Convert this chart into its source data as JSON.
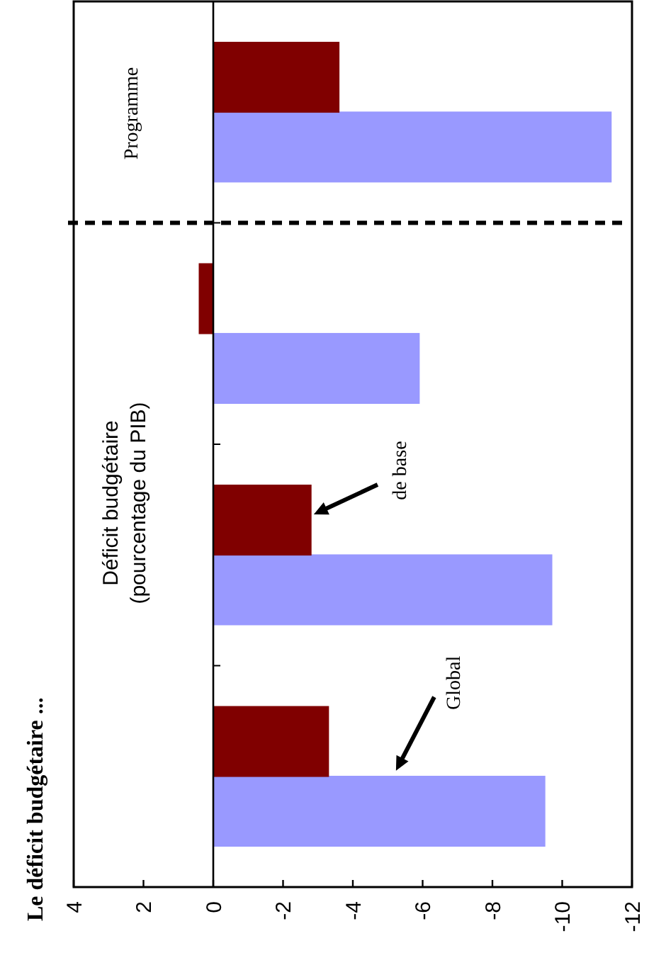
{
  "chart_data": {
    "type": "bar",
    "orientation": "horizontal",
    "title": "Le déficit budgétaire ...",
    "categories": [
      null,
      null,
      null,
      null
    ],
    "series": [
      {
        "name": "Global",
        "color": "#9999ff",
        "values": [
          -11.4,
          -5.9,
          -9.7,
          -9.5
        ]
      },
      {
        "name": "de base",
        "color": "#800000",
        "values": [
          -3.6,
          0.4,
          -2.8,
          -3.3
        ]
      }
    ],
    "xlim": [
      4,
      -12
    ],
    "xticks": [
      4,
      2,
      0,
      -2,
      -4,
      -6,
      -8,
      -10,
      -12
    ],
    "annotations": [
      "Déficit budgétaire\n(pourcentage du PIB)",
      "Programme"
    ]
  }
}
